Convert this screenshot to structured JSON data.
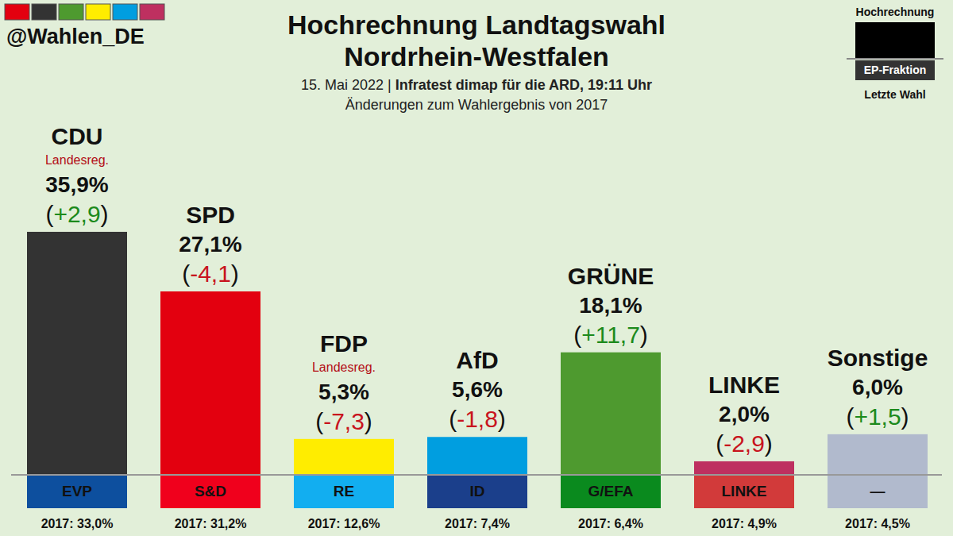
{
  "chart_data": {
    "type": "bar",
    "source": "@Wahlen_DE",
    "title": [
      "Hochrechnung Landtagswahl",
      "Nordrhein-Westfalen"
    ],
    "subtitle": [
      "15. Mai 2022 |",
      "Infratest dimap für die ARD, 19:11 Uhr"
    ],
    "note": "Änderungen zum Wahlergebnis von 2017",
    "legend_box": [
      "Hochrechnung",
      "EP-Fraktion",
      "Letzte Wahl"
    ],
    "categories": [
      "CDU",
      "SPD",
      "FDP",
      "AfD",
      "GRÜNE",
      "LINKE",
      "Sonstige"
    ],
    "values": [
      35.9,
      27.1,
      5.3,
      5.6,
      18.1,
      2.0,
      6.0
    ],
    "value_labels": [
      "35,9%",
      "27,1%",
      "5,3%",
      "5,6%",
      "18,1%",
      "2,0%",
      "6,0%"
    ],
    "colors": [
      "#333333",
      "#e3000f",
      "#ffed00",
      "#009ee0",
      "#4e9a2f",
      "#be3060",
      "#b1bacd"
    ],
    "changes": [
      2.9,
      -4.1,
      -7.3,
      -1.8,
      11.7,
      -2.9,
      1.5
    ],
    "change_labels": [
      "(+2,9)",
      "(-4,1)",
      "(-7,3)",
      "(-1,8)",
      "(+11,7)",
      "(-2,9)",
      "(+1,5)"
    ],
    "status_labels": [
      "Landesreg.",
      null,
      "Landesreg.",
      null,
      null,
      null,
      null
    ],
    "groups": [
      "EVP",
      "S&D",
      "RE",
      "ID",
      "G/EFA",
      "LINKE",
      "—"
    ],
    "group_colors": [
      "#0d4f9e",
      "#f0001c",
      "#12aef0",
      "#1b3f8b",
      "#0a8a1e",
      "#d23a3a",
      "#b1bacd"
    ],
    "previous_labels": [
      "2017: 33,0%",
      "2017: 31,2%",
      "2017: 12,6%",
      "2017: 7,4%",
      "2017: 6,4%",
      "2017: 4,9%",
      "2017: 4,5%"
    ],
    "ylim": [
      0,
      40
    ],
    "grid": false,
    "data_labels": true
  }
}
